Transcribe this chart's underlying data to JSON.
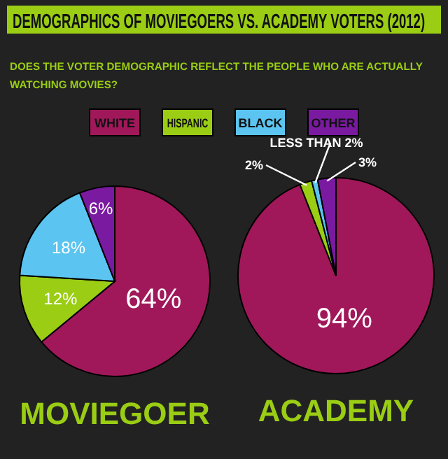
{
  "chart_data": [
    {
      "type": "pie",
      "title": "DEMOGRAPHICS OF MOVIEGOERS VS. ACADEMY VOTERS (2012)",
      "subtitle": "DOES THE VOTER DEMOGRAPHIC REFLECT THE PEOPLE WHO ARE ACTUALLY WATCHING MOVIES?",
      "xlabel": "MOVIEGOER",
      "categories": [
        "WHITE",
        "HISPANIC",
        "BLACK",
        "OTHER"
      ],
      "values": [
        64,
        12,
        18,
        6
      ],
      "value_labels": [
        "64%",
        "12%",
        "18%",
        "6%"
      ],
      "colors": [
        "#a0185a",
        "#9acd14",
        "#5bc4f0",
        "#7a1aa0"
      ],
      "legend": "top"
    },
    {
      "type": "pie",
      "xlabel": "ACADEMY",
      "categories": [
        null,
        null,
        null,
        null
      ],
      "values": [
        94,
        2,
        1,
        3
      ],
      "value_labels": [
        "94%",
        "2%",
        "LESS THAN 2%",
        "3%"
      ],
      "colors": [
        "#a0185a",
        "#9acd14",
        "#5bc4f0",
        "#7a1aa0"
      ]
    }
  ]
}
